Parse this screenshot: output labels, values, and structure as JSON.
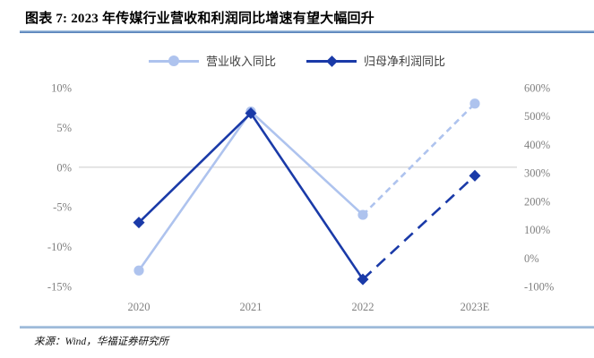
{
  "header": {
    "title": "图表 7: 2023 年传媒行业营收和利润同比增速有望大幅回升"
  },
  "footer": {
    "source": "来源：Wind，华福证券研究所"
  },
  "chart_data": {
    "type": "line",
    "title": "",
    "categories": [
      "2020",
      "2021",
      "2022",
      "2023E"
    ],
    "series": [
      {
        "name": "营业收入同比",
        "axis": "left",
        "values": [
          -13,
          7,
          -6,
          8
        ],
        "color": "#aec3ee",
        "marker": "circle",
        "solid_until_index": 2,
        "dash_pattern": "7 5"
      },
      {
        "name": "归母净利润同比",
        "axis": "right",
        "values": [
          125,
          510,
          -75,
          290
        ],
        "color": "#1a3aa8",
        "marker": "diamond",
        "solid_until_index": 2,
        "dash_pattern": "13 8"
      }
    ],
    "left_axis": {
      "ticks": [
        "10%",
        "5%",
        "0%",
        "-5%",
        "-10%",
        "-15%"
      ],
      "max": 10,
      "min": -15
    },
    "right_axis": {
      "ticks": [
        "600%",
        "500%",
        "400%",
        "300%",
        "200%",
        "100%",
        "0%",
        "-100%"
      ],
      "max": 600,
      "min": -100
    },
    "gridline_at_left_value": 0,
    "gridline_color": "#d9d9d9",
    "legend_position": "top",
    "axis_label_color": "#7f7f7f"
  }
}
